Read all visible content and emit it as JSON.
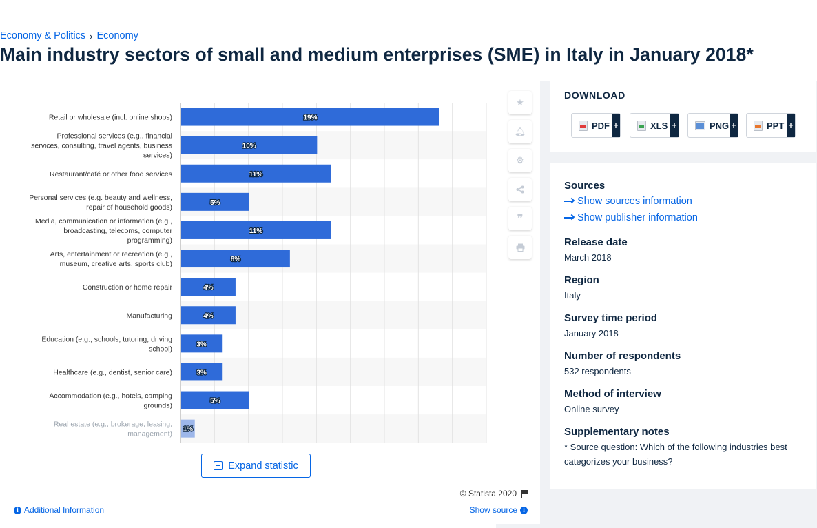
{
  "breadcrumb": {
    "items": [
      "Economy & Politics",
      "Economy"
    ]
  },
  "title": "Main industry sectors of small and medium enterprises (SME) in Italy in January 2018*",
  "chart_data": {
    "type": "bar",
    "orientation": "horizontal",
    "categories": [
      "Retail or wholesale (incl. online shops)",
      "Professional services (e.g., financial services, consulting, travel agents, business services)",
      "Restaurant/café or other food services",
      "Personal services (e.g. beauty and wellness, repair of household goods)",
      "Media, communication or information (e.g., broadcasting, telecoms, computer programming)",
      "Arts, entertainment or recreation (e.g., museum, creative arts, sports club)",
      "Construction or home repair",
      "Manufacturing",
      "Education (e.g., schools, tutoring, driving school)",
      "Healthcare (e.g., dentist, senior care)",
      "Accommodation (e.g., hotels, camping grounds)",
      "Real estate (e.g., brokerage, leasing, management)"
    ],
    "category_lines": [
      [
        "Retail or wholesale (incl. online shops)"
      ],
      [
        "Professional services (e.g., financial",
        "services, consulting, travel agents, business",
        "services)"
      ],
      [
        "Restaurant/café or other food services"
      ],
      [
        "Personal services (e.g. beauty and wellness,",
        "repair of household goods)"
      ],
      [
        "Media, communication or information (e.g.,",
        "broadcasting, telecoms, computer",
        "programming)"
      ],
      [
        "Arts, entertainment or recreation (e.g.,",
        "museum, creative arts, sports club)"
      ],
      [
        "Construction or home repair"
      ],
      [
        "Manufacturing"
      ],
      [
        "Education (e.g., schools, tutoring, driving",
        "school)"
      ],
      [
        "Healthcare (e.g., dentist, senior care)"
      ],
      [
        "Accommodation (e.g., hotels, camping",
        "grounds)"
      ],
      [
        "Real estate (e.g., brokerage, leasing,",
        "management)"
      ]
    ],
    "values": [
      19,
      10,
      11,
      5,
      11,
      8,
      4,
      4,
      3,
      3,
      5,
      1
    ],
    "value_labels": [
      "19%",
      "10%",
      "11%",
      "5%",
      "11%",
      "8%",
      "4%",
      "4%",
      "3%",
      "3%",
      "5%",
      "1%"
    ],
    "xlim": [
      0,
      22.5
    ],
    "grid": true,
    "bar_color": "#2f6bd9"
  },
  "buttons": {
    "expand": "Expand statistic"
  },
  "toolbar": [
    "star-icon",
    "bell-icon",
    "gear-icon",
    "share-icon",
    "quote-icon",
    "print-icon"
  ],
  "footer": {
    "copyright": "© Statista 2020",
    "additional_info": "Additional Information",
    "show_source": "Show source"
  },
  "download": {
    "title": "DOWNLOAD",
    "formats": [
      "PDF",
      "XLS",
      "PNG",
      "PPT"
    ],
    "plus": "+"
  },
  "meta": {
    "sources_heading": "Sources",
    "show_sources": "Show sources information",
    "show_publisher": "Show publisher information",
    "release_heading": "Release date",
    "release_value": "March 2018",
    "region_heading": "Region",
    "region_value": "Italy",
    "survey_heading": "Survey time period",
    "survey_value": "January 2018",
    "respondents_heading": "Number of respondents",
    "respondents_value": "532 respondents",
    "method_heading": "Method of interview",
    "method_value": "Online survey",
    "notes_heading": "Supplementary notes",
    "notes_value": "* Source question: Which of the following industries best categorizes your business?"
  }
}
